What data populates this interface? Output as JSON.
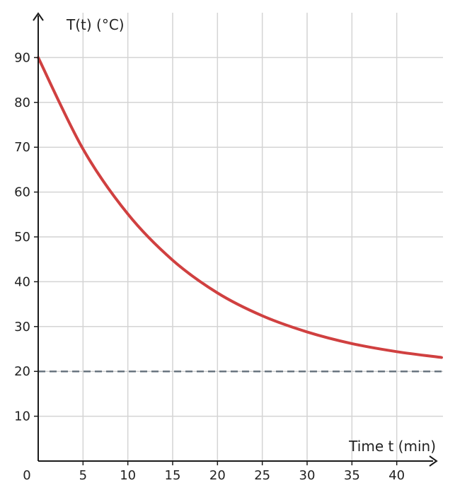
{
  "chart_data": {
    "type": "line",
    "title": "",
    "xlabel": "Time t (min)",
    "ylabel": "T(t) (°C)",
    "origin_label": "0",
    "xlim": [
      0,
      45
    ],
    "ylim": [
      0,
      100
    ],
    "x_ticks": [
      5,
      10,
      15,
      20,
      25,
      30,
      35,
      40
    ],
    "y_ticks": [
      10,
      20,
      30,
      40,
      50,
      60,
      70,
      80,
      90
    ],
    "grid": true,
    "legend": "none",
    "series": [
      {
        "x": [
          0,
          5,
          10,
          15,
          20,
          25,
          30,
          35,
          40,
          45
        ],
        "y": [
          90,
          69.6,
          55.1,
          44.8,
          37.5,
          32.4,
          28.8,
          26.2,
          24.4,
          23.1
        ],
        "color": "#d04040"
      }
    ],
    "reference_lines": [
      {
        "y": 20,
        "style": "dashed",
        "color": "#6a7580"
      }
    ]
  }
}
